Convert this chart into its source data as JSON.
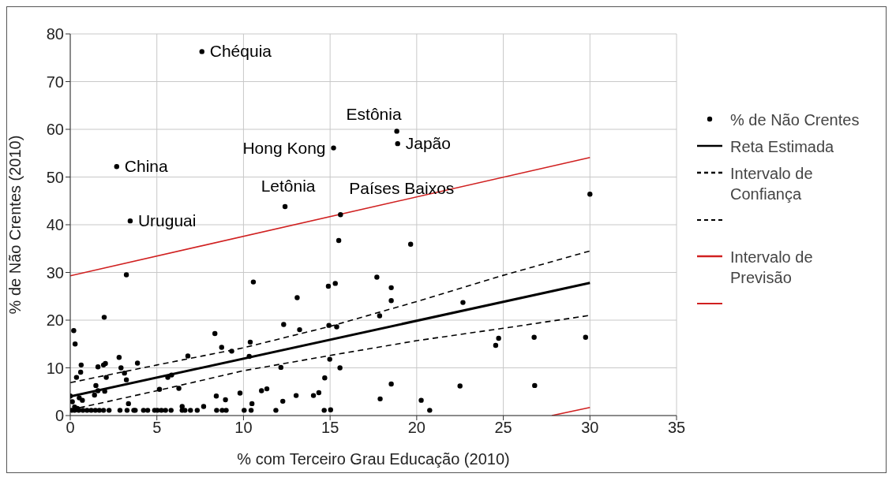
{
  "chart_data": {
    "type": "scatter",
    "xlabel": "% com Terceiro Grau Educação (2010)",
    "ylabel": "% de Não Crentes (2010)",
    "xlim": [
      0,
      35
    ],
    "xticks": [
      0,
      5,
      10,
      15,
      20,
      25,
      30,
      35
    ],
    "ylim": [
      0,
      80
    ],
    "yticks": [
      0,
      10,
      20,
      30,
      40,
      50,
      60,
      70,
      80
    ],
    "grid": true,
    "legend": "right",
    "series": [
      {
        "name": "% de Não Crentes",
        "marker": "circle",
        "color": "#000000",
        "x": [
          7.6,
          2.68,
          3.46,
          15.2,
          18.85,
          18.9,
          12.4,
          15.6,
          15.5,
          19.65,
          30.0,
          3.24,
          10.57,
          1.96,
          0.2,
          0.28,
          8.35,
          10.39,
          8.74,
          9.32,
          10.33,
          2.82,
          6.79,
          3.88,
          0.63,
          1.6,
          1.92,
          2.03,
          2.93,
          0.6,
          3.13,
          0.36,
          2.08,
          3.24,
          5.85,
          5.63,
          1.48,
          1.6,
          1.4,
          1.99,
          0.0,
          5.15,
          6.27,
          9.8,
          11.04,
          8.43,
          8.96,
          3.36,
          10.49,
          0.52,
          0.7,
          0.12,
          0.25,
          0.41,
          7.7,
          6.46,
          0.09,
          0.25,
          0.49,
          0.73,
          0.97,
          1.21,
          1.45,
          1.68,
          1.92,
          2.24,
          2.87,
          3.28,
          3.67,
          3.75,
          4.23,
          4.47,
          4.87,
          5.03,
          5.26,
          5.5,
          5.82,
          6.46,
          6.62,
          6.94,
          7.33,
          8.45,
          8.77,
          9.0,
          10.04,
          10.44,
          14.9,
          15.3,
          17.7,
          18.53,
          13.1,
          18.53,
          22.67,
          12.32,
          13.24,
          14.93,
          15.38,
          17.86,
          12.16,
          14.98,
          15.57,
          14.69,
          11.35,
          12.27,
          13.04,
          14.04,
          14.35,
          11.87,
          14.66,
          15.03,
          18.53,
          17.89,
          20.26,
          20.75,
          22.5,
          24.73,
          24.56,
          26.78,
          29.75,
          26.81
        ],
        "values": [
          76.3,
          52.2,
          40.8,
          56.1,
          59.6,
          57.0,
          43.8,
          42.1,
          36.7,
          35.9,
          46.4,
          29.5,
          28.0,
          20.6,
          17.8,
          15.0,
          17.2,
          15.4,
          14.3,
          13.5,
          12.4,
          12.2,
          12.5,
          11.0,
          10.6,
          10.2,
          10.6,
          10.9,
          10.0,
          9.1,
          8.9,
          8.0,
          8.0,
          7.5,
          8.5,
          8.0,
          6.3,
          5.2,
          4.3,
          5.1,
          4.1,
          5.5,
          5.7,
          4.7,
          5.2,
          4.1,
          3.3,
          2.5,
          2.5,
          3.7,
          3.2,
          2.9,
          1.8,
          1.5,
          1.9,
          1.9,
          1.1,
          1.1,
          1.1,
          1.1,
          1.1,
          1.1,
          1.1,
          1.1,
          1.1,
          1.1,
          1.1,
          1.1,
          1.1,
          1.1,
          1.1,
          1.1,
          1.1,
          1.1,
          1.1,
          1.1,
          1.1,
          1.1,
          1.1,
          1.1,
          1.1,
          1.1,
          1.1,
          1.1,
          1.1,
          1.1,
          27.1,
          27.7,
          29.0,
          26.8,
          24.7,
          24.1,
          23.7,
          19.1,
          18.0,
          18.9,
          18.6,
          20.9,
          10.1,
          11.8,
          10.0,
          7.9,
          5.6,
          3.0,
          4.2,
          4.2,
          4.8,
          1.1,
          1.1,
          1.2,
          6.6,
          3.5,
          3.2,
          1.1,
          6.2,
          16.2,
          14.7,
          16.4,
          16.4,
          6.3
        ]
      },
      {
        "name": "Reta Estimada",
        "type": "line",
        "color": "#000000",
        "line_style": "solid",
        "x": [
          0,
          30
        ],
        "values": [
          4.0,
          27.8
        ]
      },
      {
        "name": "Intervalo de Confiança",
        "type": "line",
        "color": "#000000",
        "line_style": "dashed",
        "x": [
          0,
          5,
          10,
          15,
          20,
          25,
          30
        ],
        "values": [
          6.9,
          10.6,
          14.2,
          18.7,
          23.9,
          29.4,
          34.5
        ]
      },
      {
        "type": "line",
        "color": "#000000",
        "line_style": "dashed",
        "x": [
          0,
          5,
          10,
          15,
          20,
          25,
          30
        ],
        "values": [
          1.2,
          5.2,
          9.4,
          12.6,
          15.7,
          18.3,
          21.0
        ]
      },
      {
        "name": "Intervalo de Previsão",
        "type": "line",
        "color": "#d02020",
        "line_style": "solid",
        "x": [
          0,
          30
        ],
        "values": [
          29.3,
          54.1
        ]
      },
      {
        "type": "line",
        "color": "#d02020",
        "line_style": "solid",
        "x": [
          27.8,
          30
        ],
        "values": [
          0,
          1.7
        ]
      }
    ],
    "annotations": [
      {
        "text": "Chéquia",
        "x": 7.6,
        "y": 76.3
      },
      {
        "text": "China",
        "x": 2.68,
        "y": 52.2
      },
      {
        "text": "Uruguai",
        "x": 3.46,
        "y": 40.8
      },
      {
        "text": "Hong Kong",
        "x": 15.2,
        "y": 56.1
      },
      {
        "text": "Estônia",
        "x": 18.85,
        "y": 59.6
      },
      {
        "text": "Japão",
        "x": 18.9,
        "y": 57.0
      },
      {
        "text": "Letônia",
        "x": 12.4,
        "y": 43.8
      },
      {
        "text": "Países Baixos",
        "x": 15.6,
        "y": 42.1
      }
    ]
  }
}
